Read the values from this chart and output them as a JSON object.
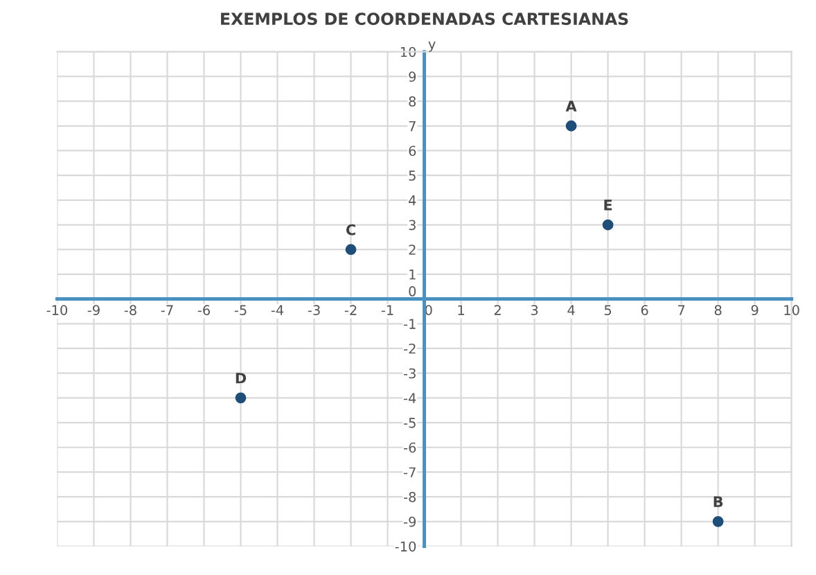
{
  "chart_data": {
    "type": "scatter",
    "title": "EXEMPLOS DE COORDENADAS CARTESIANAS",
    "ylabel": "y",
    "x": [
      4,
      8,
      -2,
      -5,
      5
    ],
    "series": [
      {
        "color": "#1f4e79",
        "values": [
          7,
          -9,
          2,
          -4,
          3
        ]
      }
    ],
    "annotations": [
      {
        "text": "A",
        "x": 4,
        "y": 7
      },
      {
        "text": "B",
        "x": 8,
        "y": -9
      },
      {
        "text": "C",
        "x": -2,
        "y": 2
      },
      {
        "text": "D",
        "x": -5,
        "y": -4
      },
      {
        "text": "E",
        "x": 5,
        "y": 3
      }
    ],
    "xlim": [
      -10,
      10
    ],
    "ylim": [
      -10,
      10
    ],
    "xticks": [
      -10,
      -9,
      -8,
      -7,
      -6,
      -5,
      -4,
      -3,
      -2,
      -1,
      0,
      1,
      2,
      3,
      4,
      5,
      6,
      7,
      8,
      9,
      10
    ],
    "yticks": [
      -10,
      -9,
      -8,
      -7,
      -6,
      -5,
      -4,
      -3,
      -2,
      -1,
      0,
      1,
      2,
      3,
      4,
      5,
      6,
      7,
      8,
      9,
      10
    ],
    "grid": true,
    "marker": "circle",
    "legend": false
  }
}
